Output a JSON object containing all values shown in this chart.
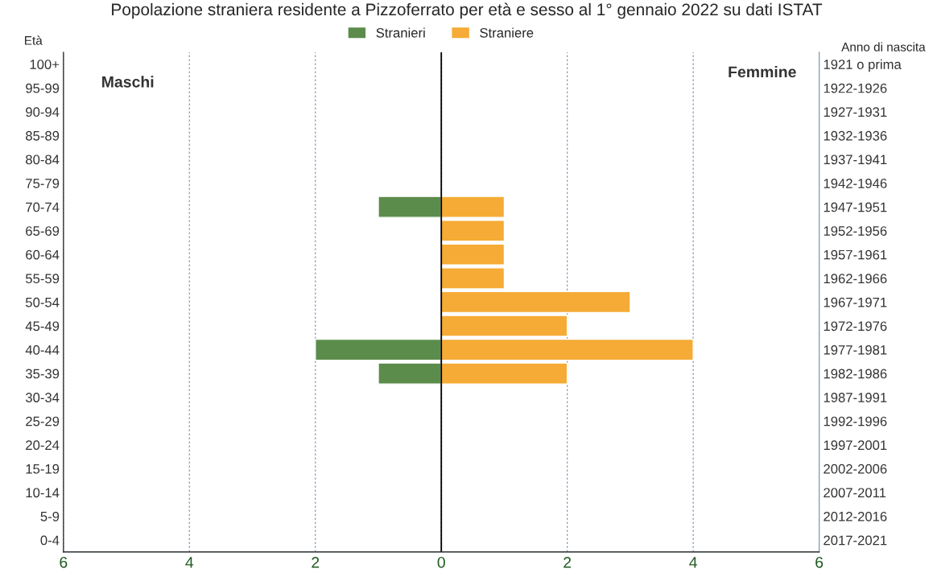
{
  "chart_data": {
    "type": "bar",
    "orientation": "horizontal",
    "title": "Popolazione straniera residente a Pizzoferrato per età e sesso al 1° gennaio 2022 su dati ISTAT",
    "ylabel": "Età",
    "y2label": "Anno di nascita",
    "categories": [
      "100+",
      "95-99",
      "90-94",
      "85-89",
      "80-84",
      "75-79",
      "70-74",
      "65-69",
      "60-64",
      "55-59",
      "50-54",
      "45-49",
      "40-44",
      "35-39",
      "30-34",
      "25-29",
      "20-24",
      "15-19",
      "10-14",
      "5-9",
      "0-4"
    ],
    "y2_categories": [
      "1921 o prima",
      "1922-1926",
      "1927-1931",
      "1932-1936",
      "1937-1941",
      "1942-1946",
      "1947-1951",
      "1952-1956",
      "1957-1961",
      "1962-1966",
      "1967-1971",
      "1972-1976",
      "1977-1981",
      "1982-1986",
      "1987-1991",
      "1992-1996",
      "1997-2001",
      "2002-2006",
      "2007-2011",
      "2012-2016",
      "2017-2021"
    ],
    "series": [
      {
        "name": "Stranieri",
        "color": "#5b8c4b",
        "values": [
          null,
          null,
          null,
          null,
          null,
          null,
          -1,
          null,
          null,
          null,
          null,
          null,
          -2,
          -1,
          null,
          null,
          null,
          null,
          null,
          null,
          null
        ]
      },
      {
        "name": "Straniere",
        "color": "#f5ab35",
        "values": [
          null,
          null,
          null,
          null,
          null,
          null,
          1,
          1,
          1,
          1,
          3,
          2,
          4,
          2,
          null,
          null,
          null,
          null,
          null,
          null,
          null
        ]
      }
    ],
    "xlim": [
      -6,
      6
    ],
    "xticks": [
      {
        "value": -6,
        "label": "6"
      },
      {
        "value": -4,
        "label": "4"
      },
      {
        "value": -2,
        "label": "2"
      },
      0,
      2,
      4,
      6
    ],
    "ref_lines": [
      {
        "axis": "x",
        "value": 0,
        "color": "#000000"
      }
    ],
    "annotations": [
      "Maschi",
      "Femmine"
    ],
    "grid": "x",
    "legend": "top"
  }
}
